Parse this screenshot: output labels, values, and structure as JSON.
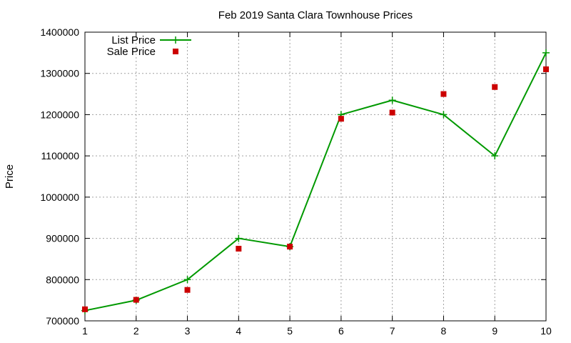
{
  "chart_data": {
    "type": "line",
    "title": "Feb 2019 Santa Clara Townhouse Prices",
    "xlabel": "",
    "ylabel": "Price",
    "x": [
      1,
      2,
      3,
      4,
      5,
      6,
      7,
      8,
      9,
      10
    ],
    "xlim": [
      1,
      10
    ],
    "ylim": [
      700000,
      1400000
    ],
    "x_ticks": [
      "1",
      "2",
      "3",
      "4",
      "5",
      "6",
      "7",
      "8",
      "9",
      "10"
    ],
    "y_ticks": [
      "700000",
      "800000",
      "900000",
      "1000000",
      "1100000",
      "1200000",
      "1300000",
      "1400000"
    ],
    "grid": "dashed",
    "legend_position": "top-left",
    "series": [
      {
        "name": "List Price",
        "style": "line+plus",
        "color": "#009900",
        "values": [
          725000,
          750000,
          800000,
          900000,
          880000,
          1200000,
          1235000,
          1200000,
          1100000,
          1350000
        ]
      },
      {
        "name": "Sale Price",
        "style": "square-points",
        "color": "#cc0000",
        "values": [
          728000,
          751000,
          775000,
          875000,
          880000,
          1190000,
          1205000,
          1250000,
          1267000,
          1310000
        ]
      }
    ]
  }
}
